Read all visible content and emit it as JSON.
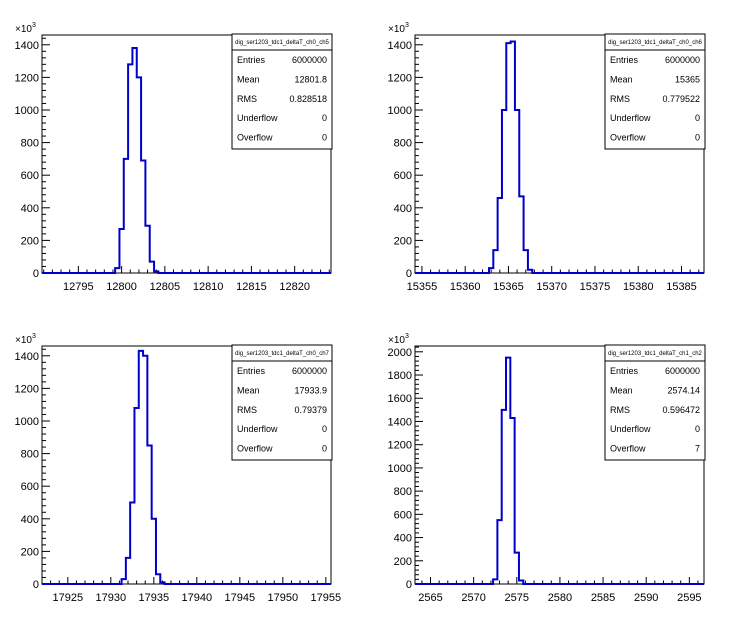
{
  "chart_data": [
    {
      "type": "bar",
      "histogram_name": "dig_ser1203_tdc1_deltaT_ch0_ch5",
      "exponent_label": "×10",
      "exponent_power": "3",
      "xlim": [
        12790.8,
        12824.2
      ],
      "ylim": [
        0,
        1460
      ],
      "x_ticks": [
        12795,
        12800,
        12805,
        12810,
        12815,
        12820
      ],
      "y_ticks": [
        0,
        200,
        400,
        600,
        800,
        1000,
        1200,
        1400
      ],
      "y_tick_labels": [
        "0",
        "200",
        "400",
        "600",
        "800",
        "1000",
        "1200",
        "1400"
      ],
      "bin_width": 0.5,
      "bin_edges_start": 12799.25,
      "values": [
        30,
        270,
        700,
        1280,
        1380,
        1200,
        690,
        290,
        70,
        10
      ],
      "stats": [
        {
          "label": "Entries",
          "value": "6000000"
        },
        {
          "label": "Mean",
          "value": "12801.8"
        },
        {
          "label": "RMS",
          "value": "0.828518"
        },
        {
          "label": "Underflow",
          "value": "0"
        },
        {
          "label": "Overflow",
          "value": "0"
        }
      ]
    },
    {
      "type": "bar",
      "histogram_name": "dig_ser1203_tdc1_deltaT_ch0_ch6",
      "exponent_label": "×10",
      "exponent_power": "3",
      "xlim": [
        15354.2,
        15387.6
      ],
      "ylim": [
        0,
        1460
      ],
      "x_ticks": [
        15355,
        15360,
        15365,
        15370,
        15375,
        15380,
        15385
      ],
      "y_ticks": [
        0,
        200,
        400,
        600,
        800,
        1000,
        1200,
        1400
      ],
      "y_tick_labels": [
        "0",
        "200",
        "400",
        "600",
        "800",
        "1000",
        "1200",
        "1400"
      ],
      "bin_width": 0.5,
      "bin_edges_start": 15362.75,
      "values": [
        30,
        140,
        460,
        1000,
        1410,
        1420,
        1000,
        470,
        140,
        20
      ],
      "stats": [
        {
          "label": "Entries",
          "value": "6000000"
        },
        {
          "label": "Mean",
          "value": "15365"
        },
        {
          "label": "RMS",
          "value": "0.779522"
        },
        {
          "label": "Underflow",
          "value": "0"
        },
        {
          "label": "Overflow",
          "value": "0"
        }
      ]
    },
    {
      "type": "bar",
      "histogram_name": "dig_ser1203_tdc1_deltaT_ch0_ch7",
      "exponent_label": "×10",
      "exponent_power": "3",
      "xlim": [
        17922.0,
        17955.6
      ],
      "ylim": [
        0,
        1460
      ],
      "x_ticks": [
        17925,
        17930,
        17935,
        17940,
        17945,
        17950,
        17955
      ],
      "y_ticks": [
        0,
        200,
        400,
        600,
        800,
        1000,
        1200,
        1400
      ],
      "y_tick_labels": [
        "0",
        "200",
        "400",
        "600",
        "800",
        "1000",
        "1200",
        "1400"
      ],
      "bin_width": 0.5,
      "bin_edges_start": 17931.25,
      "values": [
        30,
        160,
        500,
        1080,
        1430,
        1400,
        850,
        400,
        60,
        10
      ],
      "stats": [
        {
          "label": "Entries",
          "value": "6000000"
        },
        {
          "label": "Mean",
          "value": "17933.9"
        },
        {
          "label": "RMS",
          "value": "0.79379"
        },
        {
          "label": "Underflow",
          "value": "0"
        },
        {
          "label": "Overflow",
          "value": "0"
        }
      ]
    },
    {
      "type": "bar",
      "histogram_name": "dig_ser1203_tdc1_deltaT_ch1_ch2",
      "exponent_label": "×10",
      "exponent_power": "3",
      "xlim": [
        2563.2,
        2596.7
      ],
      "ylim": [
        0,
        2050
      ],
      "x_ticks": [
        2565,
        2570,
        2575,
        2580,
        2585,
        2590,
        2595
      ],
      "y_ticks": [
        0,
        200,
        400,
        600,
        800,
        1000,
        1200,
        1400,
        1600,
        1800,
        2000
      ],
      "y_tick_labels": [
        "0",
        "200",
        "400",
        "600",
        "800",
        "1000",
        "1200",
        "1400",
        "1600",
        "1800",
        "2000"
      ],
      "bin_width": 0.5,
      "bin_edges_start": 2572.25,
      "values": [
        40,
        550,
        1500,
        1950,
        1430,
        270,
        30
      ],
      "stats": [
        {
          "label": "Entries",
          "value": "6000000"
        },
        {
          "label": "Mean",
          "value": "2574.14"
        },
        {
          "label": "RMS",
          "value": "0.596472"
        },
        {
          "label": "Underflow",
          "value": "0"
        },
        {
          "label": "Overflow",
          "value": "7"
        }
      ]
    }
  ]
}
